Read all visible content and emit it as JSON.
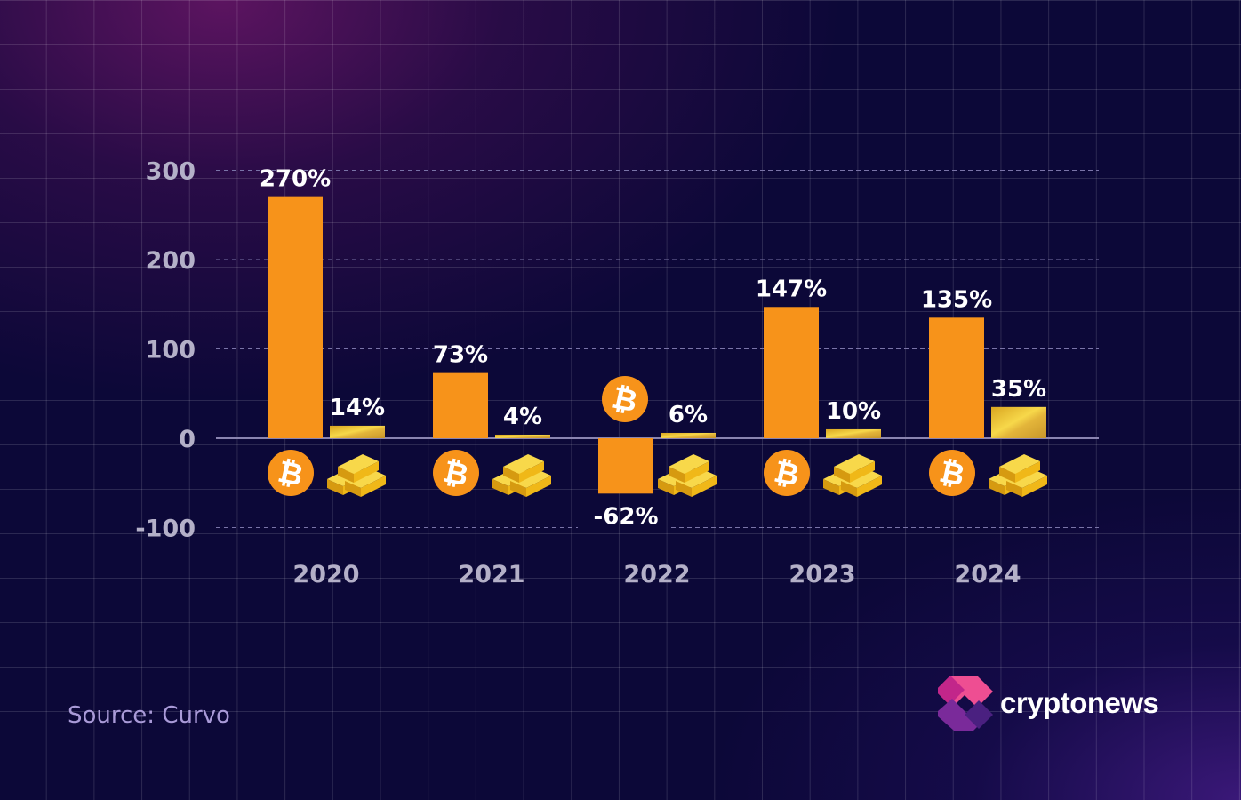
{
  "chart_data": {
    "type": "bar",
    "categories": [
      "2020",
      "2021",
      "2022",
      "2023",
      "2024"
    ],
    "series": [
      {
        "icon": "bitcoin-icon",
        "color": "#f7931a",
        "values": [
          270,
          73,
          -62,
          147,
          135
        ],
        "labels": [
          "270%",
          "73%",
          "-62%",
          "147%",
          "135%"
        ]
      },
      {
        "icon": "gold-bars-icon",
        "color": "#e8b830",
        "values": [
          14,
          4,
          6,
          10,
          35
        ],
        "labels": [
          "14%",
          "4%",
          "6%",
          "10%",
          "35%"
        ]
      }
    ],
    "yticks": [
      300,
      200,
      100,
      0,
      -100
    ],
    "ylim": [
      -100,
      300
    ],
    "grid": true
  },
  "source": "Source: Curvo",
  "brand": "cryptonews"
}
